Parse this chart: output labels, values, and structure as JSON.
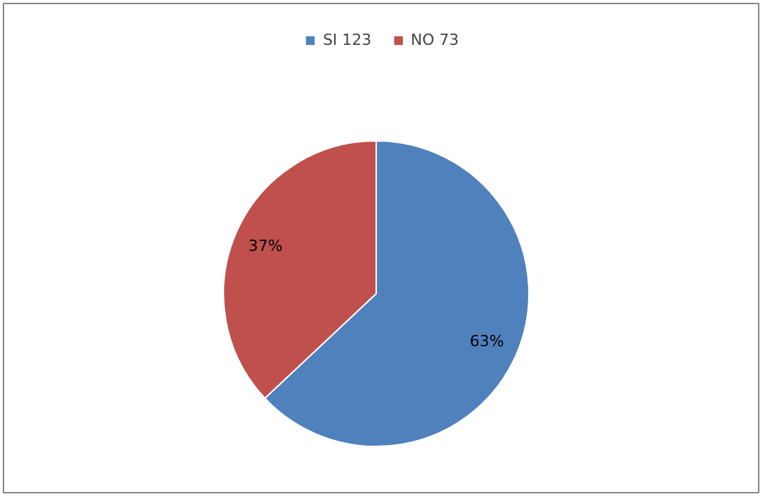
{
  "chart_data": {
    "type": "pie",
    "categories": [
      "SI 123",
      "NO 73"
    ],
    "values": [
      63,
      37
    ],
    "colors": [
      "#4f81bd",
      "#c0504d"
    ],
    "value_labels": [
      "63%",
      "37%"
    ],
    "legend": "top"
  }
}
